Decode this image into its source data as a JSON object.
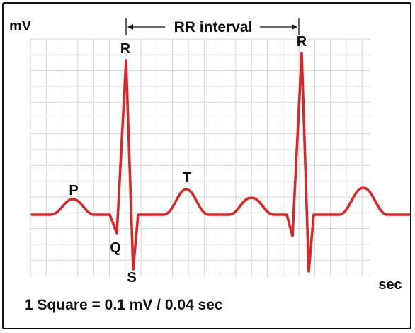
{
  "diagram": {
    "y_axis_unit": "mV",
    "x_axis_unit": "sec",
    "interval_label": "RR interval",
    "scale_note": "1 Square = 0.1 mV / 0.04 sec",
    "waves": {
      "p": "P",
      "q": "Q",
      "r": "R",
      "s": "S",
      "t": "T"
    },
    "grid": true,
    "colors": {
      "trace": "#d8282a",
      "grid": "#d6d6d6",
      "text": "#111111",
      "border": "#111111"
    }
  }
}
